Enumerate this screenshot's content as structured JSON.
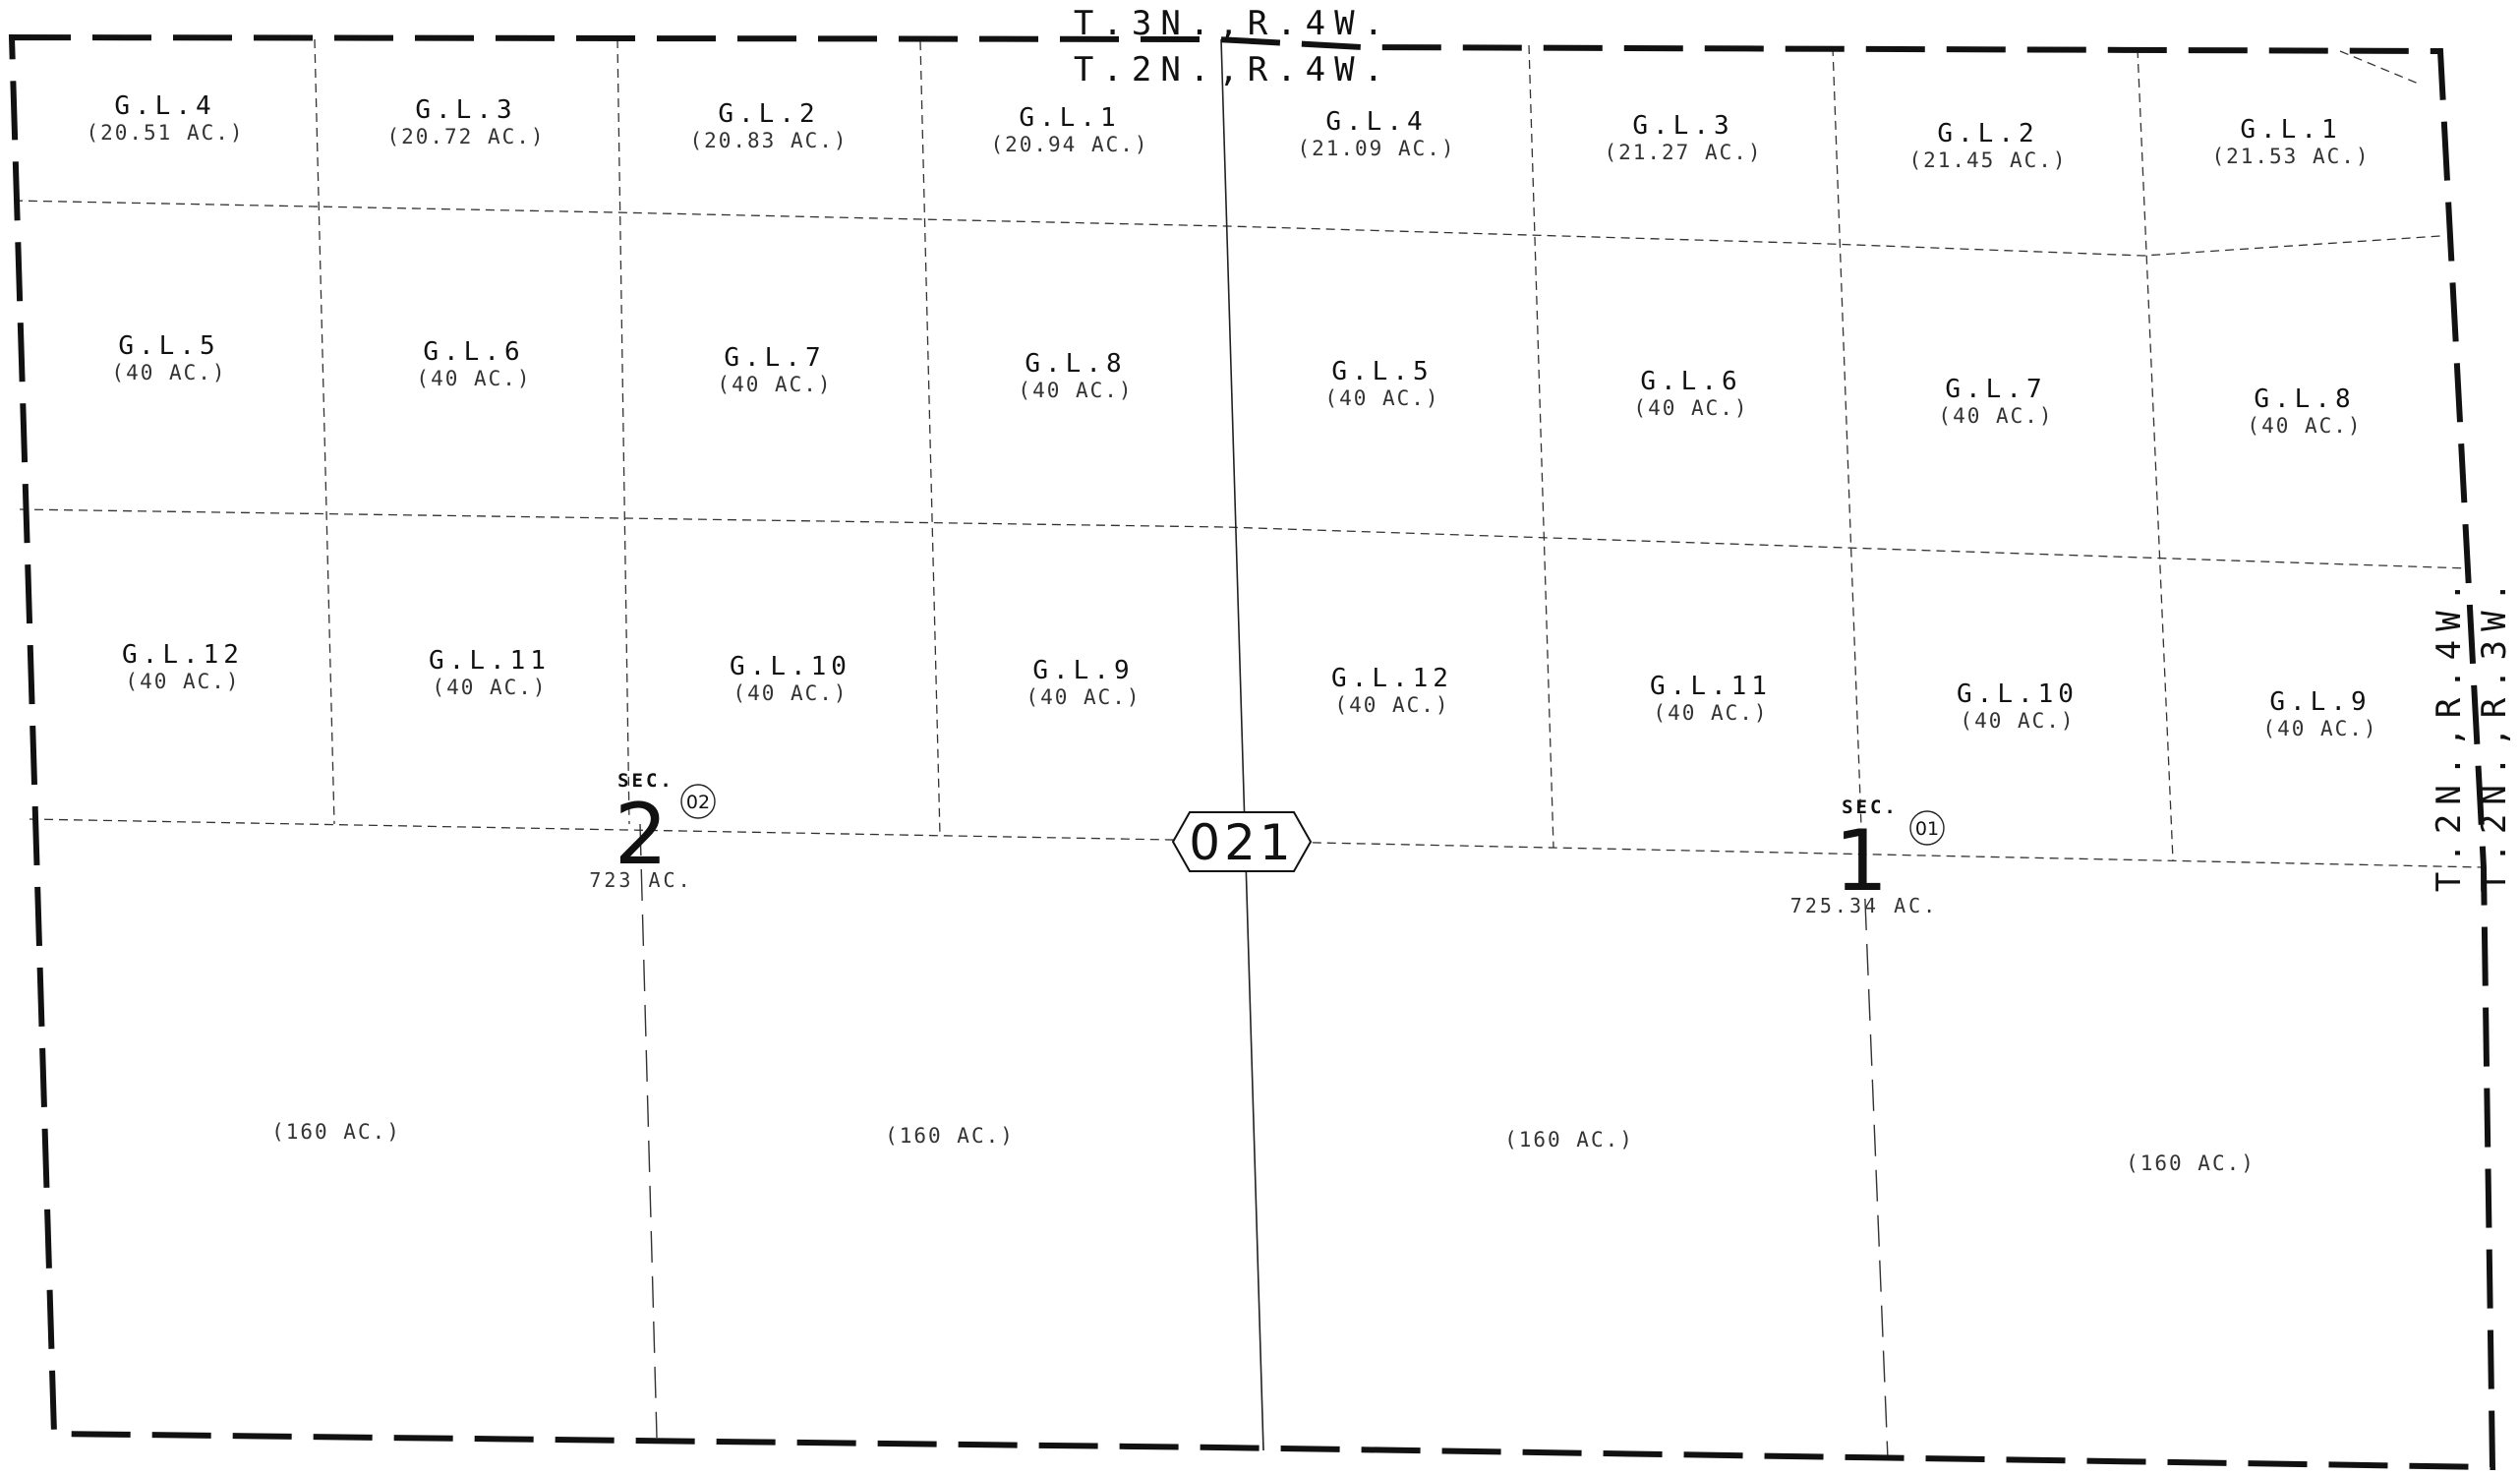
{
  "township_labels": {
    "top_north": "T.3N.,R.4W.",
    "top_south": "T.2N.,R.4W.",
    "right_west": "T.2N.,R.4W.",
    "right_east": "T.2N.,R.3W."
  },
  "map_code": "021",
  "sections": [
    {
      "number": "2",
      "prefix": "SEC.",
      "circle_code": "02",
      "acreage": "723 AC.",
      "lots": [
        {
          "name": "G.L.4",
          "acres": "(20.51 AC.)"
        },
        {
          "name": "G.L.3",
          "acres": "(20.72 AC.)"
        },
        {
          "name": "G.L.2",
          "acres": "(20.83 AC.)"
        },
        {
          "name": "G.L.1",
          "acres": "(20.94 AC.)"
        },
        {
          "name": "G.L.5",
          "acres": "(40 AC.)"
        },
        {
          "name": "G.L.6",
          "acres": "(40 AC.)"
        },
        {
          "name": "G.L.7",
          "acres": "(40 AC.)"
        },
        {
          "name": "G.L.8",
          "acres": "(40 AC.)"
        },
        {
          "name": "G.L.12",
          "acres": "(40 AC.)"
        },
        {
          "name": "G.L.11",
          "acres": "(40 AC.)"
        },
        {
          "name": "G.L.10",
          "acres": "(40 AC.)"
        },
        {
          "name": "G.L.9",
          "acres": "(40 AC.)"
        }
      ],
      "quarters": [
        "(160 AC.)",
        "(160 AC.)"
      ]
    },
    {
      "number": "1",
      "prefix": "SEC.",
      "circle_code": "01",
      "acreage": "725.34 AC.",
      "lots": [
        {
          "name": "G.L.4",
          "acres": "(21.09 AC.)"
        },
        {
          "name": "G.L.3",
          "acres": "(21.27 AC.)"
        },
        {
          "name": "G.L.2",
          "acres": "(21.45 AC.)"
        },
        {
          "name": "G.L.1",
          "acres": "(21.53 AC.)"
        },
        {
          "name": "G.L.5",
          "acres": "(40 AC.)"
        },
        {
          "name": "G.L.6",
          "acres": "(40 AC.)"
        },
        {
          "name": "G.L.7",
          "acres": "(40 AC.)"
        },
        {
          "name": "G.L.8",
          "acres": "(40 AC.)"
        },
        {
          "name": "G.L.12",
          "acres": "(40 AC.)"
        },
        {
          "name": "G.L.11",
          "acres": "(40 AC.)"
        },
        {
          "name": "G.L.10",
          "acres": "(40 AC.)"
        },
        {
          "name": "G.L.9",
          "acres": "(40 AC.)"
        }
      ],
      "quarters": [
        "(160 AC.)",
        "(160 AC.)"
      ]
    }
  ]
}
